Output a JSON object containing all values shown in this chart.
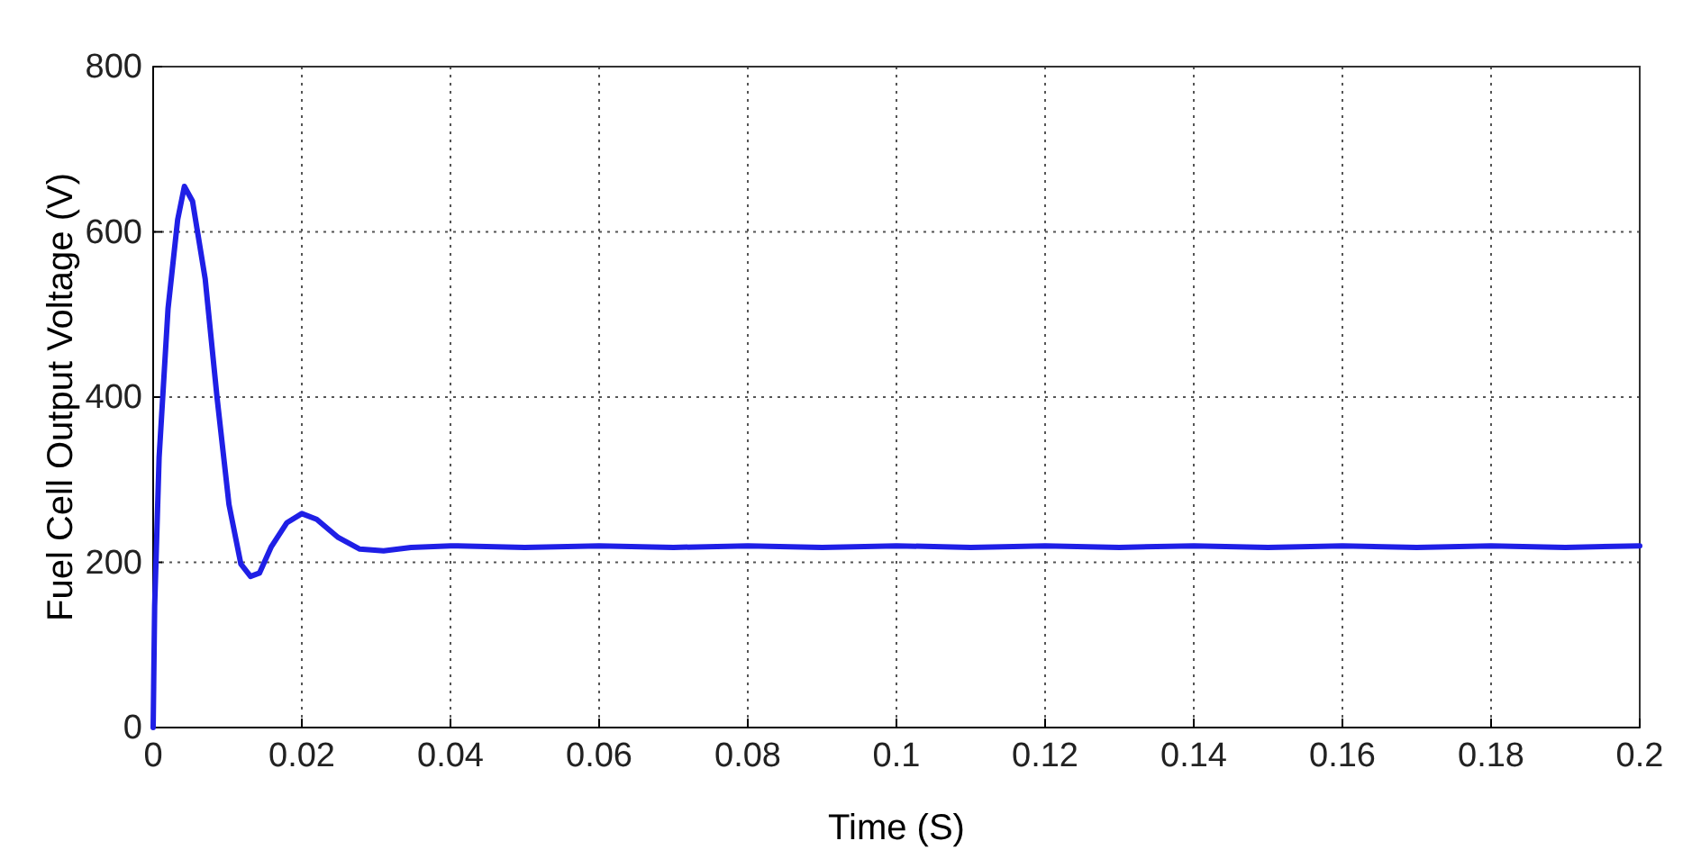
{
  "chart_data": {
    "type": "line",
    "xlabel": "Time (S)",
    "ylabel": "Fuel Cell Output Voltage (V)",
    "xlim": [
      0,
      0.2
    ],
    "ylim": [
      0,
      800
    ],
    "xticks": [
      0,
      0.02,
      0.04,
      0.06,
      0.08,
      0.1,
      0.12,
      0.14,
      0.16,
      0.18,
      0.2
    ],
    "yticks": [
      0,
      200,
      400,
      600,
      800
    ],
    "grid": true,
    "line_style": "solid",
    "series": [
      {
        "color": "#1f1fe6",
        "x": [
          0,
          0.0002,
          0.0008,
          0.002,
          0.0033,
          0.0042,
          0.0053,
          0.007,
          0.0086,
          0.0102,
          0.0118,
          0.0131,
          0.0143,
          0.0159,
          0.018,
          0.02,
          0.022,
          0.0249,
          0.0278,
          0.031,
          0.0347,
          0.04,
          0.05,
          0.06,
          0.07,
          0.08,
          0.09,
          0.1,
          0.11,
          0.12,
          0.13,
          0.14,
          0.15,
          0.16,
          0.17,
          0.18,
          0.19,
          0.2
        ],
        "values": [
          0,
          147,
          327,
          507,
          615,
          655,
          637,
          543,
          399,
          270,
          198,
          183,
          187,
          219,
          248,
          259,
          252,
          230,
          216,
          214,
          218,
          220,
          218,
          220,
          218,
          220,
          218,
          220,
          218,
          220,
          218,
          220,
          218,
          220,
          218,
          220,
          218,
          220
        ]
      }
    ]
  }
}
